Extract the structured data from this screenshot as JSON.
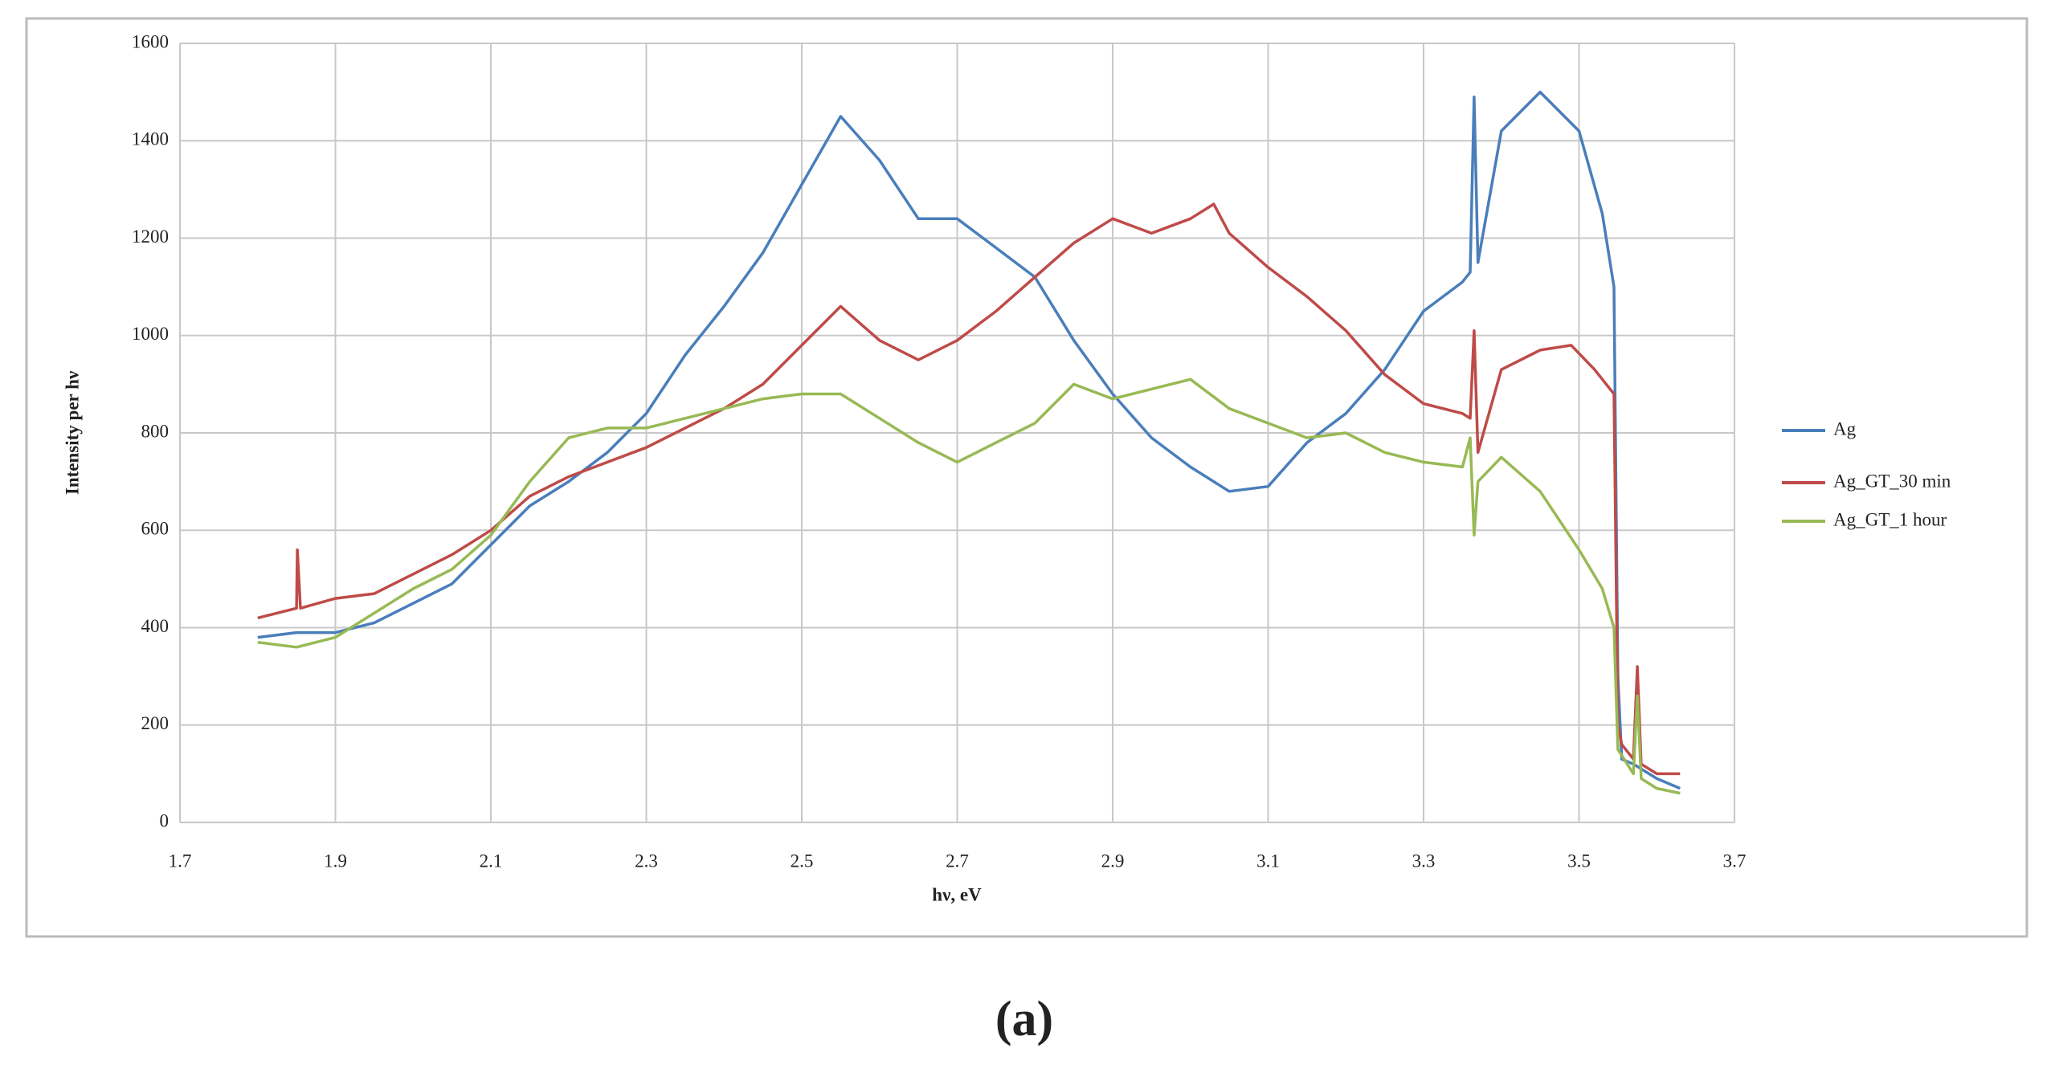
{
  "chart_data": {
    "type": "line",
    "x_label": "hν, eV",
    "y_label": "Intensity per hν",
    "caption": "(a)",
    "xlim": [
      1.7,
      3.7
    ],
    "xticks": [
      1.7,
      1.9,
      2.1,
      2.3,
      2.5,
      2.7,
      2.9,
      3.1,
      3.3,
      3.5,
      3.7
    ],
    "ylim": [
      0,
      1600
    ],
    "yticks": [
      0,
      200,
      400,
      600,
      800,
      1000,
      1200,
      1400,
      1600
    ],
    "grid": true,
    "legend": "right",
    "series": [
      {
        "name": "Ag",
        "color": "#4a7ebb",
        "x": [
          1.8,
          1.85,
          1.9,
          1.95,
          2.0,
          2.05,
          2.1,
          2.15,
          2.2,
          2.25,
          2.3,
          2.35,
          2.4,
          2.45,
          2.5,
          2.55,
          2.6,
          2.65,
          2.7,
          2.75,
          2.8,
          2.85,
          2.9,
          2.95,
          3.0,
          3.05,
          3.1,
          3.15,
          3.2,
          3.25,
          3.3,
          3.35,
          3.36,
          3.365,
          3.37,
          3.4,
          3.45,
          3.5,
          3.53,
          3.545,
          3.55,
          3.555,
          3.57,
          3.6,
          3.63
        ],
        "values": [
          380,
          390,
          390,
          410,
          450,
          490,
          570,
          650,
          700,
          760,
          840,
          960,
          1060,
          1170,
          1310,
          1450,
          1360,
          1240,
          1240,
          1180,
          1120,
          990,
          880,
          790,
          730,
          680,
          690,
          780,
          840,
          930,
          1050,
          1110,
          1130,
          1490,
          1150,
          1420,
          1500,
          1420,
          1250,
          1100,
          300,
          130,
          120,
          90,
          70
        ]
      },
      {
        "name": "Ag_GT_30 min",
        "color": "#be4b48",
        "x": [
          1.8,
          1.85,
          1.851,
          1.855,
          1.9,
          1.95,
          2.0,
          2.05,
          2.1,
          2.15,
          2.2,
          2.25,
          2.3,
          2.35,
          2.4,
          2.45,
          2.5,
          2.55,
          2.6,
          2.65,
          2.7,
          2.75,
          2.8,
          2.85,
          2.9,
          2.95,
          3.0,
          3.03,
          3.05,
          3.1,
          3.15,
          3.2,
          3.25,
          3.3,
          3.35,
          3.36,
          3.365,
          3.37,
          3.4,
          3.45,
          3.49,
          3.52,
          3.545,
          3.55,
          3.555,
          3.57,
          3.575,
          3.58,
          3.6,
          3.63
        ],
        "values": [
          420,
          440,
          560,
          440,
          460,
          470,
          510,
          550,
          600,
          670,
          710,
          740,
          770,
          810,
          850,
          900,
          980,
          1060,
          990,
          950,
          990,
          1050,
          1120,
          1190,
          1240,
          1210,
          1240,
          1270,
          1210,
          1140,
          1080,
          1010,
          920,
          860,
          840,
          830,
          1010,
          760,
          930,
          970,
          980,
          930,
          880,
          200,
          160,
          130,
          320,
          120,
          100,
          100
        ]
      },
      {
        "name": "Ag_GT_1 hour",
        "color": "#98b954",
        "x": [
          1.8,
          1.85,
          1.9,
          1.95,
          2.0,
          2.05,
          2.1,
          2.15,
          2.2,
          2.25,
          2.3,
          2.35,
          2.4,
          2.45,
          2.5,
          2.55,
          2.6,
          2.65,
          2.7,
          2.75,
          2.8,
          2.85,
          2.9,
          2.95,
          3.0,
          3.05,
          3.1,
          3.15,
          3.2,
          3.25,
          3.3,
          3.35,
          3.36,
          3.365,
          3.37,
          3.4,
          3.45,
          3.5,
          3.53,
          3.545,
          3.55,
          3.57,
          3.575,
          3.58,
          3.6,
          3.63
        ],
        "values": [
          370,
          360,
          380,
          430,
          480,
          520,
          590,
          700,
          790,
          810,
          810,
          830,
          850,
          870,
          880,
          880,
          830,
          780,
          740,
          780,
          820,
          900,
          870,
          890,
          910,
          850,
          820,
          790,
          800,
          760,
          740,
          730,
          790,
          590,
          700,
          750,
          680,
          560,
          480,
          400,
          150,
          100,
          260,
          90,
          70,
          60
        ]
      }
    ]
  }
}
